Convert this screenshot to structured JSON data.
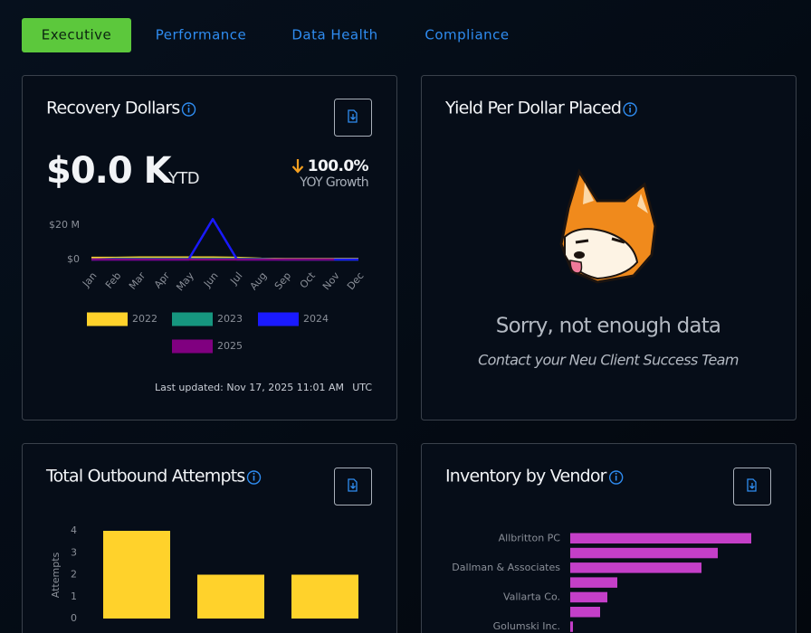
{
  "tabs": [
    "Executive",
    "Performance",
    "Data Health",
    "Compliance"
  ],
  "recovery_dollars": {
    "title": "Recovery Dollars",
    "amount": "$0.0 K",
    "period": "YTD",
    "growth": "100.0%",
    "growth_label": "YOY Growth",
    "last_updated": "Last updated: Nov 17, 2025 11:01 AM",
    "timezone": "UTC",
    "chart_data": {
      "type": "line",
      "categories": [
        "Jan",
        "Feb",
        "Mar",
        "Apr",
        "May",
        "Jun",
        "Jul",
        "Aug",
        "Sep",
        "Oct",
        "Nov",
        "Dec"
      ],
      "ylim": [
        0,
        25000000
      ],
      "yticks": [
        {
          "value": 0,
          "label": "$0"
        },
        {
          "value": 20000000,
          "label": "$20 M"
        }
      ],
      "series": [
        {
          "name": "2022",
          "color": "#ffd22b",
          "values": [
            1000000,
            1000000,
            1200000,
            1200000,
            1200000,
            1200000,
            1000000,
            500000,
            300000,
            300000,
            300000,
            300000
          ]
        },
        {
          "name": "2023",
          "color": "#16967f",
          "values": [
            0,
            500000,
            500000,
            500000,
            500000,
            500000,
            500000,
            300000,
            0,
            0,
            0,
            0
          ]
        },
        {
          "name": "2024",
          "color": "#1a1aff",
          "values": [
            0,
            0,
            0,
            0,
            0,
            23500000,
            0,
            0,
            0,
            0,
            0,
            0
          ]
        },
        {
          "name": "2025",
          "color": "#800080",
          "values": [
            0,
            0,
            0,
            0,
            0,
            0,
            0,
            0,
            0,
            0,
            0,
            null
          ]
        }
      ]
    }
  },
  "yield_per_dollar": {
    "title": "Yield Per Dollar Placed",
    "message": "Sorry, not enough data",
    "hint": "Contact your Neu Client Success Team"
  },
  "outbound_attempts": {
    "title": "Total Outbound Attempts",
    "chart_data": {
      "type": "bar",
      "categories": [
        null,
        null,
        null
      ],
      "values": [
        4,
        2,
        2
      ],
      "color": "#ffd22b",
      "ylabel": "Attempts",
      "ylim": [
        0,
        4
      ],
      "yticks": [
        0,
        1,
        2,
        3,
        4
      ]
    }
  },
  "inventory_by_vendor": {
    "title": "Inventory by Vendor",
    "chart_data": {
      "type": "hbar",
      "categories": [
        "Allbritton PC",
        null,
        "Dallman & Associates",
        null,
        "Vallarta Co.",
        null,
        "Golumski Inc."
      ],
      "values": [
        200,
        163,
        145,
        52,
        41,
        33,
        3
      ],
      "color": "#c43fc8"
    }
  }
}
